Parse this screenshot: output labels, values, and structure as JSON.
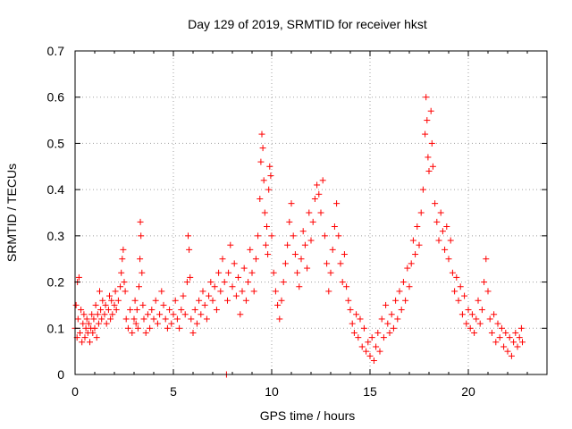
{
  "chart_data": {
    "type": "scatter",
    "title": "Day 129 of 2019, SRMTID for receiver hkst",
    "xlabel": "GPS time / hours",
    "ylabel": "SRMTID / TECUs",
    "xlim": [
      0,
      24
    ],
    "ylim": [
      0,
      0.7
    ],
    "xticks": [
      0,
      5,
      10,
      15,
      20
    ],
    "xtick_labels": [
      "0",
      "5",
      "10",
      "15",
      "20"
    ],
    "yticks": [
      0,
      0.1,
      0.2,
      0.3,
      0.4,
      0.5,
      0.6,
      0.7
    ],
    "ytick_labels": [
      "0",
      "0.1",
      "0.2",
      "0.3",
      "0.4",
      "0.5",
      "0.6",
      "0.7"
    ],
    "grid": true,
    "marker": "+",
    "color": "#ff0000",
    "series": [
      {
        "name": "SRMTID",
        "points": [
          [
            0.0,
            0.1
          ],
          [
            0.05,
            0.15
          ],
          [
            0.1,
            0.08
          ],
          [
            0.12,
            0.2
          ],
          [
            0.15,
            0.12
          ],
          [
            0.2,
            0.21
          ],
          [
            0.25,
            0.09
          ],
          [
            0.3,
            0.14
          ],
          [
            0.35,
            0.07
          ],
          [
            0.4,
            0.11
          ],
          [
            0.45,
            0.13
          ],
          [
            0.5,
            0.08
          ],
          [
            0.55,
            0.1
          ],
          [
            0.6,
            0.12
          ],
          [
            0.65,
            0.09
          ],
          [
            0.7,
            0.11
          ],
          [
            0.75,
            0.07
          ],
          [
            0.8,
            0.1
          ],
          [
            0.85,
            0.13
          ],
          [
            0.9,
            0.09
          ],
          [
            0.95,
            0.12
          ],
          [
            1.0,
            0.1
          ],
          [
            1.05,
            0.15
          ],
          [
            1.1,
            0.08
          ],
          [
            1.15,
            0.13
          ],
          [
            1.2,
            0.11
          ],
          [
            1.25,
            0.18
          ],
          [
            1.3,
            0.14
          ],
          [
            1.35,
            0.12
          ],
          [
            1.4,
            0.16
          ],
          [
            1.5,
            0.13
          ],
          [
            1.55,
            0.15
          ],
          [
            1.6,
            0.11
          ],
          [
            1.7,
            0.14
          ],
          [
            1.75,
            0.17
          ],
          [
            1.8,
            0.12
          ],
          [
            1.85,
            0.16
          ],
          [
            1.9,
            0.13
          ],
          [
            2.0,
            0.15
          ],
          [
            2.05,
            0.18
          ],
          [
            2.1,
            0.14
          ],
          [
            2.2,
            0.16
          ],
          [
            2.3,
            0.19
          ],
          [
            2.35,
            0.22
          ],
          [
            2.4,
            0.25
          ],
          [
            2.45,
            0.27
          ],
          [
            2.5,
            0.2
          ],
          [
            2.55,
            0.18
          ],
          [
            2.6,
            0.12
          ],
          [
            2.7,
            0.1
          ],
          [
            2.8,
            0.14
          ],
          [
            2.9,
            0.09
          ],
          [
            3.0,
            0.12
          ],
          [
            3.05,
            0.16
          ],
          [
            3.1,
            0.11
          ],
          [
            3.15,
            0.14
          ],
          [
            3.2,
            0.1
          ],
          [
            3.25,
            0.19
          ],
          [
            3.3,
            0.25
          ],
          [
            3.32,
            0.33
          ],
          [
            3.35,
            0.3
          ],
          [
            3.4,
            0.22
          ],
          [
            3.45,
            0.15
          ],
          [
            3.5,
            0.12
          ],
          [
            3.6,
            0.09
          ],
          [
            3.7,
            0.13
          ],
          [
            3.8,
            0.1
          ],
          [
            3.9,
            0.14
          ],
          [
            4.0,
            0.12
          ],
          [
            4.1,
            0.16
          ],
          [
            4.2,
            0.11
          ],
          [
            4.3,
            0.13
          ],
          [
            4.4,
            0.18
          ],
          [
            4.5,
            0.15
          ],
          [
            4.6,
            0.12
          ],
          [
            4.7,
            0.1
          ],
          [
            4.8,
            0.14
          ],
          [
            4.9,
            0.11
          ],
          [
            5.0,
            0.13
          ],
          [
            5.1,
            0.16
          ],
          [
            5.2,
            0.12
          ],
          [
            5.3,
            0.1
          ],
          [
            5.4,
            0.14
          ],
          [
            5.5,
            0.17
          ],
          [
            5.6,
            0.13
          ],
          [
            5.7,
            0.2
          ],
          [
            5.75,
            0.3
          ],
          [
            5.8,
            0.27
          ],
          [
            5.85,
            0.21
          ],
          [
            5.9,
            0.12
          ],
          [
            6.0,
            0.09
          ],
          [
            6.1,
            0.14
          ],
          [
            6.2,
            0.11
          ],
          [
            6.3,
            0.16
          ],
          [
            6.4,
            0.13
          ],
          [
            6.5,
            0.18
          ],
          [
            6.6,
            0.15
          ],
          [
            6.7,
            0.12
          ],
          [
            6.8,
            0.17
          ],
          [
            6.9,
            0.2
          ],
          [
            7.0,
            0.16
          ],
          [
            7.1,
            0.19
          ],
          [
            7.2,
            0.14
          ],
          [
            7.3,
            0.22
          ],
          [
            7.4,
            0.18
          ],
          [
            7.5,
            0.25
          ],
          [
            7.6,
            0.2
          ],
          [
            7.7,
            0.0
          ],
          [
            7.75,
            0.16
          ],
          [
            7.8,
            0.22
          ],
          [
            7.9,
            0.28
          ],
          [
            8.0,
            0.19
          ],
          [
            8.1,
            0.24
          ],
          [
            8.2,
            0.17
          ],
          [
            8.3,
            0.21
          ],
          [
            8.4,
            0.13
          ],
          [
            8.5,
            0.18
          ],
          [
            8.6,
            0.23
          ],
          [
            8.7,
            0.16
          ],
          [
            8.8,
            0.2
          ],
          [
            8.9,
            0.27
          ],
          [
            9.0,
            0.22
          ],
          [
            9.1,
            0.18
          ],
          [
            9.2,
            0.25
          ],
          [
            9.3,
            0.3
          ],
          [
            9.4,
            0.38
          ],
          [
            9.45,
            0.46
          ],
          [
            9.5,
            0.52
          ],
          [
            9.55,
            0.49
          ],
          [
            9.6,
            0.42
          ],
          [
            9.65,
            0.35
          ],
          [
            9.7,
            0.28
          ],
          [
            9.75,
            0.32
          ],
          [
            9.8,
            0.26
          ],
          [
            9.85,
            0.4
          ],
          [
            9.9,
            0.45
          ],
          [
            9.95,
            0.43
          ],
          [
            10.0,
            0.3
          ],
          [
            10.1,
            0.22
          ],
          [
            10.2,
            0.18
          ],
          [
            10.3,
            0.15
          ],
          [
            10.4,
            0.12
          ],
          [
            10.5,
            0.16
          ],
          [
            10.6,
            0.2
          ],
          [
            10.7,
            0.24
          ],
          [
            10.8,
            0.28
          ],
          [
            10.9,
            0.33
          ],
          [
            11.0,
            0.37
          ],
          [
            11.1,
            0.3
          ],
          [
            11.2,
            0.26
          ],
          [
            11.3,
            0.22
          ],
          [
            11.4,
            0.19
          ],
          [
            11.5,
            0.25
          ],
          [
            11.6,
            0.31
          ],
          [
            11.7,
            0.28
          ],
          [
            11.8,
            0.23
          ],
          [
            11.9,
            0.35
          ],
          [
            12.0,
            0.29
          ],
          [
            12.1,
            0.33
          ],
          [
            12.2,
            0.38
          ],
          [
            12.3,
            0.41
          ],
          [
            12.4,
            0.39
          ],
          [
            12.5,
            0.35
          ],
          [
            12.6,
            0.42
          ],
          [
            12.7,
            0.3
          ],
          [
            12.8,
            0.24
          ],
          [
            12.9,
            0.18
          ],
          [
            13.0,
            0.22
          ],
          [
            13.1,
            0.27
          ],
          [
            13.2,
            0.32
          ],
          [
            13.3,
            0.37
          ],
          [
            13.4,
            0.3
          ],
          [
            13.5,
            0.24
          ],
          [
            13.6,
            0.2
          ],
          [
            13.7,
            0.26
          ],
          [
            13.8,
            0.19
          ],
          [
            13.9,
            0.16
          ],
          [
            14.0,
            0.14
          ],
          [
            14.1,
            0.11
          ],
          [
            14.2,
            0.09
          ],
          [
            14.3,
            0.13
          ],
          [
            14.4,
            0.08
          ],
          [
            14.5,
            0.12
          ],
          [
            14.6,
            0.06
          ],
          [
            14.7,
            0.1
          ],
          [
            14.8,
            0.05
          ],
          [
            14.9,
            0.07
          ],
          [
            15.0,
            0.04
          ],
          [
            15.1,
            0.08
          ],
          [
            15.2,
            0.03
          ],
          [
            15.3,
            0.06
          ],
          [
            15.4,
            0.09
          ],
          [
            15.5,
            0.05
          ],
          [
            15.6,
            0.12
          ],
          [
            15.7,
            0.08
          ],
          [
            15.8,
            0.15
          ],
          [
            15.9,
            0.11
          ],
          [
            16.0,
            0.09
          ],
          [
            16.1,
            0.13
          ],
          [
            16.2,
            0.1
          ],
          [
            16.3,
            0.16
          ],
          [
            16.4,
            0.12
          ],
          [
            16.5,
            0.18
          ],
          [
            16.6,
            0.14
          ],
          [
            16.7,
            0.2
          ],
          [
            16.8,
            0.16
          ],
          [
            16.9,
            0.23
          ],
          [
            17.0,
            0.19
          ],
          [
            17.1,
            0.24
          ],
          [
            17.2,
            0.29
          ],
          [
            17.3,
            0.26
          ],
          [
            17.4,
            0.32
          ],
          [
            17.5,
            0.28
          ],
          [
            17.6,
            0.35
          ],
          [
            17.7,
            0.4
          ],
          [
            17.8,
            0.52
          ],
          [
            17.85,
            0.6
          ],
          [
            17.9,
            0.55
          ],
          [
            17.95,
            0.47
          ],
          [
            18.0,
            0.44
          ],
          [
            18.1,
            0.57
          ],
          [
            18.15,
            0.5
          ],
          [
            18.2,
            0.45
          ],
          [
            18.3,
            0.37
          ],
          [
            18.4,
            0.33
          ],
          [
            18.5,
            0.29
          ],
          [
            18.6,
            0.35
          ],
          [
            18.7,
            0.31
          ],
          [
            18.8,
            0.27
          ],
          [
            18.9,
            0.32
          ],
          [
            19.0,
            0.25
          ],
          [
            19.1,
            0.29
          ],
          [
            19.2,
            0.22
          ],
          [
            19.3,
            0.18
          ],
          [
            19.4,
            0.21
          ],
          [
            19.5,
            0.16
          ],
          [
            19.6,
            0.19
          ],
          [
            19.7,
            0.13
          ],
          [
            19.8,
            0.17
          ],
          [
            19.9,
            0.11
          ],
          [
            20.0,
            0.14
          ],
          [
            20.1,
            0.1
          ],
          [
            20.2,
            0.13
          ],
          [
            20.3,
            0.09
          ],
          [
            20.4,
            0.12
          ],
          [
            20.5,
            0.16
          ],
          [
            20.6,
            0.11
          ],
          [
            20.7,
            0.14
          ],
          [
            20.8,
            0.2
          ],
          [
            20.9,
            0.25
          ],
          [
            21.0,
            0.18
          ],
          [
            21.1,
            0.12
          ],
          [
            21.2,
            0.09
          ],
          [
            21.3,
            0.13
          ],
          [
            21.4,
            0.07
          ],
          [
            21.5,
            0.11
          ],
          [
            21.6,
            0.08
          ],
          [
            21.7,
            0.1
          ],
          [
            21.8,
            0.06
          ],
          [
            21.9,
            0.09
          ],
          [
            22.0,
            0.05
          ],
          [
            22.1,
            0.08
          ],
          [
            22.2,
            0.04
          ],
          [
            22.3,
            0.07
          ],
          [
            22.4,
            0.09
          ],
          [
            22.5,
            0.06
          ],
          [
            22.6,
            0.08
          ],
          [
            22.7,
            0.1
          ],
          [
            22.75,
            0.07
          ]
        ]
      }
    ]
  }
}
